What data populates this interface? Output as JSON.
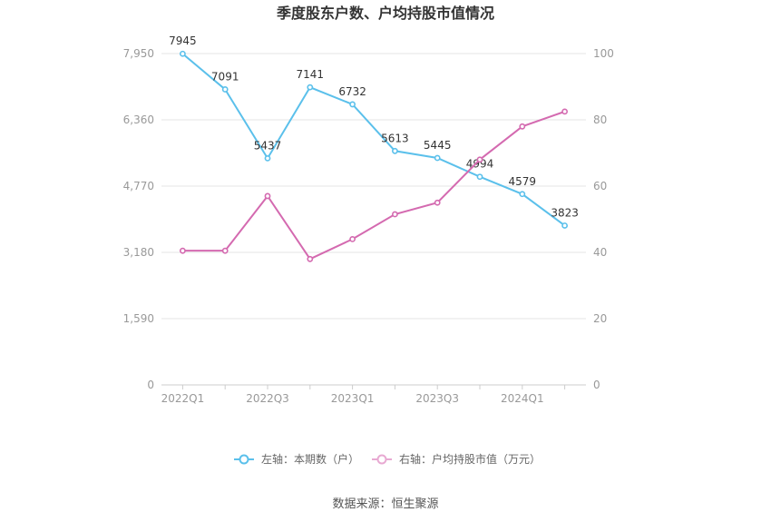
{
  "chart_data": {
    "type": "line",
    "title": "季度股东户数、户均持股市值情况",
    "categories": [
      "2022Q1",
      "2022Q2",
      "2022Q3",
      "2022Q4",
      "2023Q1",
      "2023Q2",
      "2023Q3",
      "2023Q4",
      "2024Q1",
      "2024Q2"
    ],
    "x_tick_labels": [
      "2022Q1",
      "2022Q3",
      "2023Q1",
      "2023Q3",
      "2024Q1"
    ],
    "left_axis": {
      "ticks": [
        "0",
        "1,590",
        "3,180",
        "4,770",
        "6,360",
        "7,950"
      ],
      "ylim": [
        0,
        7950
      ]
    },
    "right_axis": {
      "ticks": [
        "0",
        "20",
        "40",
        "60",
        "80",
        "100"
      ],
      "ylim": [
        0,
        100
      ]
    },
    "series": [
      {
        "name": "左轴：本期数（户）",
        "axis": "left",
        "color": "#5bc0eb",
        "values": [
          7945,
          7091,
          5437,
          7141,
          6732,
          5613,
          5445,
          4994,
          4579,
          3823
        ],
        "labels": [
          "7945",
          "7091",
          "5437",
          "7141",
          "6732",
          "5613",
          "5445",
          "4994",
          "4579",
          "3823"
        ]
      },
      {
        "name": "右轴：户均持股市值（万元）",
        "axis": "right",
        "color": "#d46ab0",
        "values": [
          40.5,
          40.5,
          57,
          38,
          44,
          51.5,
          55,
          68,
          78,
          82.5
        ]
      }
    ],
    "grid": true,
    "legend_position": "bottom"
  },
  "source": "数据来源：恒生聚源"
}
